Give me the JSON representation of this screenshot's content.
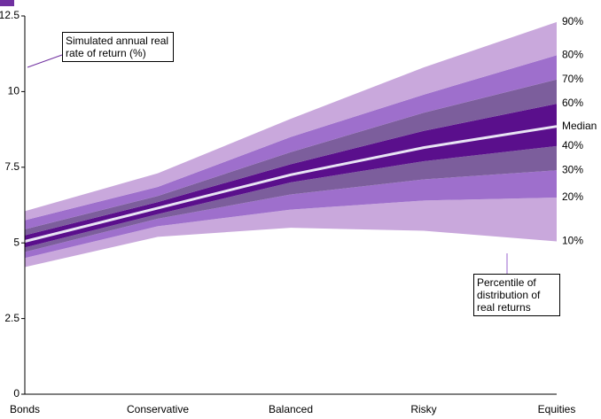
{
  "chart_data": {
    "type": "fan",
    "categories": [
      "Bonds",
      "Conservative",
      "Balanced",
      "Risky",
      "Equities"
    ],
    "ylim": [
      0,
      12.5
    ],
    "yticks": [
      0,
      2.5,
      5,
      7.5,
      10,
      12.5
    ],
    "series": [
      {
        "name": "10%",
        "color": "#c9a8dc",
        "values": [
          4.2,
          5.2,
          5.5,
          5.4,
          5.05
        ]
      },
      {
        "name": "20%",
        "color": "#9e6fcc",
        "values": [
          4.5,
          5.55,
          6.1,
          6.4,
          6.5
        ]
      },
      {
        "name": "30%",
        "color": "#7c5e9c",
        "values": [
          4.7,
          5.8,
          6.6,
          7.1,
          7.4
        ]
      },
      {
        "name": "40%",
        "color": "#5a0f8c",
        "values": [
          4.85,
          5.95,
          7.0,
          7.7,
          8.2
        ]
      },
      {
        "name": "Median",
        "color": "#e8e4f4",
        "values": [
          5.05,
          6.15,
          7.25,
          8.15,
          8.85
        ]
      },
      {
        "name": "60%",
        "color": "#5a0f8c",
        "values": [
          5.25,
          6.35,
          7.6,
          8.7,
          9.6
        ]
      },
      {
        "name": "70%",
        "color": "#7c5e9c",
        "values": [
          5.45,
          6.55,
          8.0,
          9.3,
          10.4
        ]
      },
      {
        "name": "80%",
        "color": "#9e6fcc",
        "values": [
          5.75,
          6.85,
          8.5,
          9.9,
          11.2
        ]
      },
      {
        "name": "90%",
        "color": "#c9a8dc",
        "values": [
          6.05,
          7.3,
          9.1,
          10.8,
          12.3
        ]
      }
    ],
    "annotations": [
      "Simulated annual real rate of return (%)",
      "Percentile of distribution of real returns"
    ]
  }
}
